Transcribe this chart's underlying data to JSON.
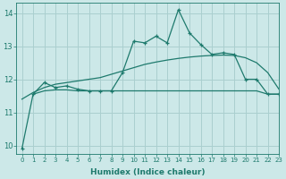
{
  "xlabel": "Humidex (Indice chaleur)",
  "ylabel": "",
  "bg_color": "#cce8e8",
  "grid_color": "#aacfcf",
  "line_color": "#1e7a6d",
  "xlim": [
    -0.5,
    23
  ],
  "ylim": [
    9.75,
    14.3
  ],
  "yticks": [
    10,
    11,
    12,
    13,
    14
  ],
  "xticks": [
    0,
    1,
    2,
    3,
    4,
    5,
    6,
    7,
    8,
    9,
    10,
    11,
    12,
    13,
    14,
    15,
    16,
    17,
    18,
    19,
    20,
    21,
    22,
    23
  ],
  "series1_x": [
    0,
    1,
    2,
    3,
    4,
    5,
    6,
    7,
    8,
    9,
    10,
    11,
    12,
    13,
    14,
    15,
    16,
    17,
    18,
    19,
    20,
    21,
    22,
    23
  ],
  "series1_y": [
    9.9,
    11.55,
    11.9,
    11.75,
    11.8,
    11.7,
    11.65,
    11.65,
    11.65,
    12.2,
    13.15,
    13.1,
    13.3,
    13.1,
    14.1,
    13.4,
    13.05,
    12.75,
    12.8,
    12.75,
    12.0,
    12.0,
    11.55,
    11.55
  ],
  "series2_x": [
    0,
    1,
    2,
    3,
    4,
    5,
    6,
    7,
    8,
    9,
    10,
    11,
    12,
    13,
    14,
    15,
    16,
    17,
    18,
    19,
    20,
    21,
    22,
    23
  ],
  "series2_y": [
    11.4,
    11.6,
    11.75,
    11.85,
    11.9,
    11.95,
    12.0,
    12.05,
    12.15,
    12.25,
    12.35,
    12.45,
    12.52,
    12.58,
    12.63,
    12.67,
    12.7,
    12.72,
    12.73,
    12.72,
    12.65,
    12.5,
    12.2,
    11.7
  ],
  "series3_x": [
    1,
    2,
    3,
    4,
    5,
    6,
    7,
    8,
    9,
    10,
    11,
    12,
    13,
    14,
    15,
    16,
    17,
    18,
    19,
    20,
    21,
    22,
    23
  ],
  "series3_y": [
    11.55,
    11.65,
    11.68,
    11.68,
    11.65,
    11.65,
    11.65,
    11.65,
    11.65,
    11.65,
    11.65,
    11.65,
    11.65,
    11.65,
    11.65,
    11.65,
    11.65,
    11.65,
    11.65,
    11.65,
    11.65,
    11.55,
    11.55
  ]
}
